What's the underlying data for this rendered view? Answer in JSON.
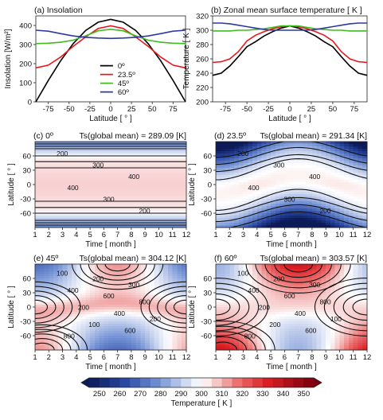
{
  "colors": {
    "obliquity_0": "#000000",
    "obliquity_23_5": "#e8191e",
    "obliquity_45": "#3cbd1c",
    "obliquity_60": "#2c3aa0",
    "contour_line": "#111111",
    "colormap_low": "#0d1f5c",
    "colormap_mid": "#ffffff",
    "colormap_high": "#7a0010"
  },
  "chart_data": [
    {
      "type": "line",
      "title": "(a) Insolation",
      "xlabel": "Latitude [ ° ]",
      "ylabel": "Insolation [W/m²]",
      "xlim": [
        -90,
        90
      ],
      "ylim": [
        0,
        450
      ],
      "xticks": [
        "-75",
        "-50",
        "-25",
        "0",
        "25",
        "50",
        "75"
      ],
      "yticks": [
        "0",
        "100",
        "200",
        "300",
        "400"
      ],
      "legend_position": "bottom-center",
      "x": [
        -90,
        -75,
        -60,
        -45,
        -30,
        -15,
        0,
        15,
        30,
        45,
        60,
        75,
        90
      ],
      "series": [
        {
          "name": "0º",
          "values": [
            0,
            112,
            216,
            305,
            374,
            417,
            432,
            417,
            374,
            305,
            216,
            112,
            0
          ]
        },
        {
          "name": "23.5º",
          "values": [
            178,
            192,
            235,
            291,
            340,
            384,
            398,
            384,
            340,
            291,
            235,
            192,
            178
          ]
        },
        {
          "name": "45º",
          "values": [
            305,
            307,
            312,
            323,
            346,
            372,
            380,
            372,
            346,
            323,
            312,
            307,
            305
          ]
        },
        {
          "name": "60º",
          "values": [
            375,
            370,
            357,
            345,
            338,
            334,
            332,
            334,
            338,
            345,
            357,
            370,
            375
          ]
        }
      ]
    },
    {
      "type": "line",
      "title": "(b) Zonal mean surface temperature [ K ]",
      "xlabel": "Latitude [ ° ]",
      "ylabel": "Temperature [ K ]",
      "xlim": [
        -90,
        90
      ],
      "ylim": [
        200,
        320
      ],
      "xticks": [
        "-75",
        "-50",
        "-25",
        "0",
        "25",
        "50",
        "75"
      ],
      "yticks": [
        "200",
        "220",
        "240",
        "260",
        "280",
        "300",
        "320"
      ],
      "x": [
        -90,
        -80,
        -70,
        -60,
        -50,
        -40,
        -30,
        -20,
        -10,
        0,
        10,
        20,
        30,
        40,
        50,
        60,
        70,
        80,
        90
      ],
      "series": [
        {
          "name": "0º",
          "values": [
            237,
            240,
            250,
            263,
            277,
            284,
            292,
            298,
            303,
            306,
            303,
            298,
            292,
            284,
            277,
            263,
            250,
            240,
            237
          ]
        },
        {
          "name": "23.5º",
          "values": [
            255,
            256,
            260,
            270,
            285,
            293,
            298,
            302,
            305,
            306,
            305,
            302,
            298,
            293,
            285,
            270,
            260,
            256,
            255
          ]
        },
        {
          "name": "45º",
          "values": [
            299,
            299,
            299,
            300,
            300,
            301,
            302,
            304,
            306,
            306,
            306,
            304,
            302,
            301,
            300,
            300,
            299,
            299,
            299
          ]
        },
        {
          "name": "60º",
          "values": [
            310,
            310,
            309,
            307,
            305,
            303,
            301,
            300,
            300,
            300,
            300,
            300,
            301,
            303,
            305,
            307,
            309,
            310,
            310
          ]
        }
      ]
    },
    {
      "type": "heatmap",
      "title": "(c) 0º",
      "subtitle": "Ts(global mean) = 289.09 [K]",
      "xlabel": "Time [ month ]",
      "ylabel": "Latitude [ ° ]",
      "obliquity": 0,
      "xlim": [
        1,
        12
      ],
      "ylim": [
        -90,
        90
      ],
      "xticks": [
        "1",
        "2",
        "3",
        "4",
        "5",
        "6",
        "7",
        "8",
        "9",
        "10",
        "11",
        "12"
      ],
      "yticks": [
        "-60",
        "-30",
        "0",
        "30",
        "60"
      ],
      "contour_labels": [
        "200",
        "300",
        "400",
        "400",
        "300",
        "200"
      ]
    },
    {
      "type": "heatmap",
      "title": "(d) 23.5º",
      "subtitle": "Ts(global mean) = 291.34 [K]",
      "xlabel": "Time [ month ]",
      "ylabel": "Latitude [ ° ]",
      "obliquity": 23.5,
      "xlim": [
        1,
        12
      ],
      "ylim": [
        -90,
        90
      ],
      "xticks": [
        "1",
        "2",
        "3",
        "4",
        "5",
        "6",
        "7",
        "8",
        "9",
        "10",
        "11",
        "12"
      ],
      "yticks": [
        "-60",
        "-30",
        "0",
        "30",
        "60"
      ],
      "contour_labels": [
        "200",
        "300",
        "400",
        "400",
        "300",
        "200"
      ]
    },
    {
      "type": "heatmap",
      "title": "(e) 45º",
      "subtitle": "Ts(global mean) = 304.12 [K]",
      "xlabel": "Time [ month ]",
      "ylabel": "Latitude [ ° ]",
      "obliquity": 45,
      "xlim": [
        1,
        12
      ],
      "ylim": [
        -90,
        90
      ],
      "xticks": [
        "1",
        "2",
        "3",
        "4",
        "5",
        "6",
        "7",
        "8",
        "9",
        "10",
        "11",
        "12"
      ],
      "yticks": [
        "-60",
        "-30",
        "0",
        "30",
        "60"
      ],
      "contour_labels": [
        "100",
        "200",
        "300",
        "400",
        "600",
        "800",
        "200",
        "400",
        "200",
        "100",
        "600",
        "800"
      ]
    },
    {
      "type": "heatmap",
      "title": "(f) 60º",
      "subtitle": "Ts(global mean) = 303.57 [K]",
      "xlabel": "Time [ month ]",
      "ylabel": "Latitude [ ° ]",
      "obliquity": 60,
      "xlim": [
        1,
        12
      ],
      "ylim": [
        -90,
        90
      ],
      "xticks": [
        "1",
        "2",
        "3",
        "4",
        "5",
        "6",
        "7",
        "8",
        "9",
        "10",
        "11",
        "12"
      ],
      "yticks": [
        "-60",
        "-30",
        "0",
        "30",
        "60"
      ],
      "contour_labels": [
        "100",
        "200",
        "300",
        "400",
        "600",
        "800",
        "200",
        "400",
        "100",
        "200",
        "600",
        "800"
      ]
    }
  ],
  "colorbar": {
    "label": "Temperature [ K ]",
    "ticks": [
      "250",
      "260",
      "270",
      "280",
      "290",
      "300",
      "310",
      "320",
      "330",
      "340",
      "350"
    ],
    "range": [
      245,
      355
    ]
  }
}
